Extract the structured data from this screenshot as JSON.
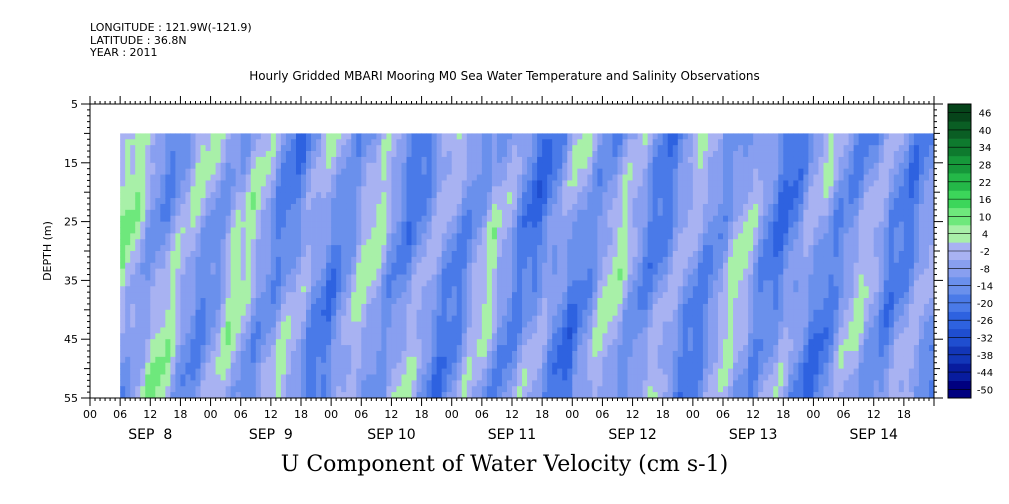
{
  "header": {
    "longitude": "LONGITUDE : 121.9W(-121.9)",
    "latitude": "LATITUDE : 36.8N",
    "year": "YEAR : 2011"
  },
  "chart_data": {
    "type": "heatmap",
    "title": "Hourly Gridded MBARI Mooring M0 Sea Water Temperature and Salinity Observations",
    "xlabel": "U Component of Water Velocity (cm s-1)",
    "ylabel": "DEPTH (m)",
    "ylim": [
      55,
      5
    ],
    "y_ticks": [
      5,
      15,
      25,
      35,
      45,
      55
    ],
    "x_range_hours": [
      0,
      168
    ],
    "data_start_hour": 6,
    "data_depth_range": [
      10,
      55
    ],
    "hour_tick_labels": [
      "00",
      "06",
      "12",
      "18"
    ],
    "day_labels": [
      "SEP  8",
      "SEP  9",
      "SEP 10",
      "SEP 11",
      "SEP 12",
      "SEP 13",
      "SEP 14"
    ],
    "colorbar": {
      "levels": [
        -50,
        -44,
        -38,
        -32,
        -26,
        -20,
        -14,
        -8,
        -2,
        4,
        10,
        16,
        22,
        28,
        34,
        40,
        46
      ],
      "tick_labels": [
        "46",
        "40",
        "34",
        "28",
        "22",
        "16",
        "10",
        "4",
        "-2",
        "-8",
        "-14",
        "-20",
        "-26",
        "-32",
        "-38",
        "-44",
        "-50"
      ],
      "colors_low_to_high": [
        "#000080",
        "#081c9e",
        "#1236b8",
        "#1f4ed0",
        "#2e62e0",
        "#4a7ae8",
        "#6a90ec",
        "#889ff0",
        "#a8b2f2",
        "#a8f0a8",
        "#6ee87c",
        "#3cd65a",
        "#24b848",
        "#16983a",
        "#0e7a2e",
        "#0a5e24",
        "#06441a"
      ]
    },
    "grid": false,
    "legend_position": "right"
  }
}
